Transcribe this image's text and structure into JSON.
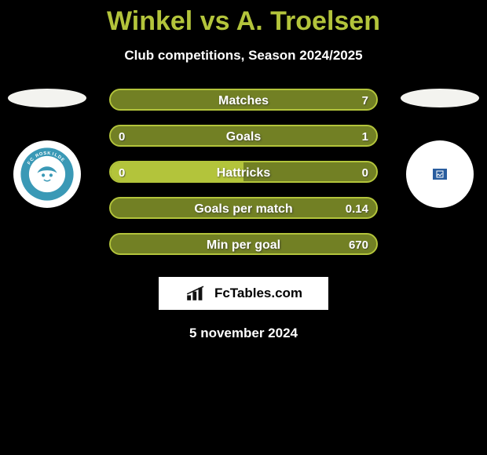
{
  "title_color": "#b3c43b",
  "title": "Winkel vs A. Troelsen",
  "subtitle": "Club competitions, Season 2024/2025",
  "brand_text": "FcTables.com",
  "date": "5 november 2024",
  "bar_colors": {
    "left_fill": "#b3c43b",
    "right_fill": "#728024",
    "outline": "#b3c43b"
  },
  "left_badge": {
    "name": "FC Roskilde",
    "ring_color": "#3a99b6",
    "inner_color": "#ffffff"
  },
  "rows": [
    {
      "label": "Matches",
      "left_val": "",
      "right_val": "7",
      "left_pct": 0,
      "right_pct": 100
    },
    {
      "label": "Goals",
      "left_val": "0",
      "right_val": "1",
      "left_pct": 0,
      "right_pct": 100
    },
    {
      "label": "Hattricks",
      "left_val": "0",
      "right_val": "0",
      "left_pct": 50,
      "right_pct": 50
    },
    {
      "label": "Goals per match",
      "left_val": "",
      "right_val": "0.14",
      "left_pct": 0,
      "right_pct": 100
    },
    {
      "label": "Min per goal",
      "left_val": "",
      "right_val": "670",
      "left_pct": 0,
      "right_pct": 100
    }
  ]
}
